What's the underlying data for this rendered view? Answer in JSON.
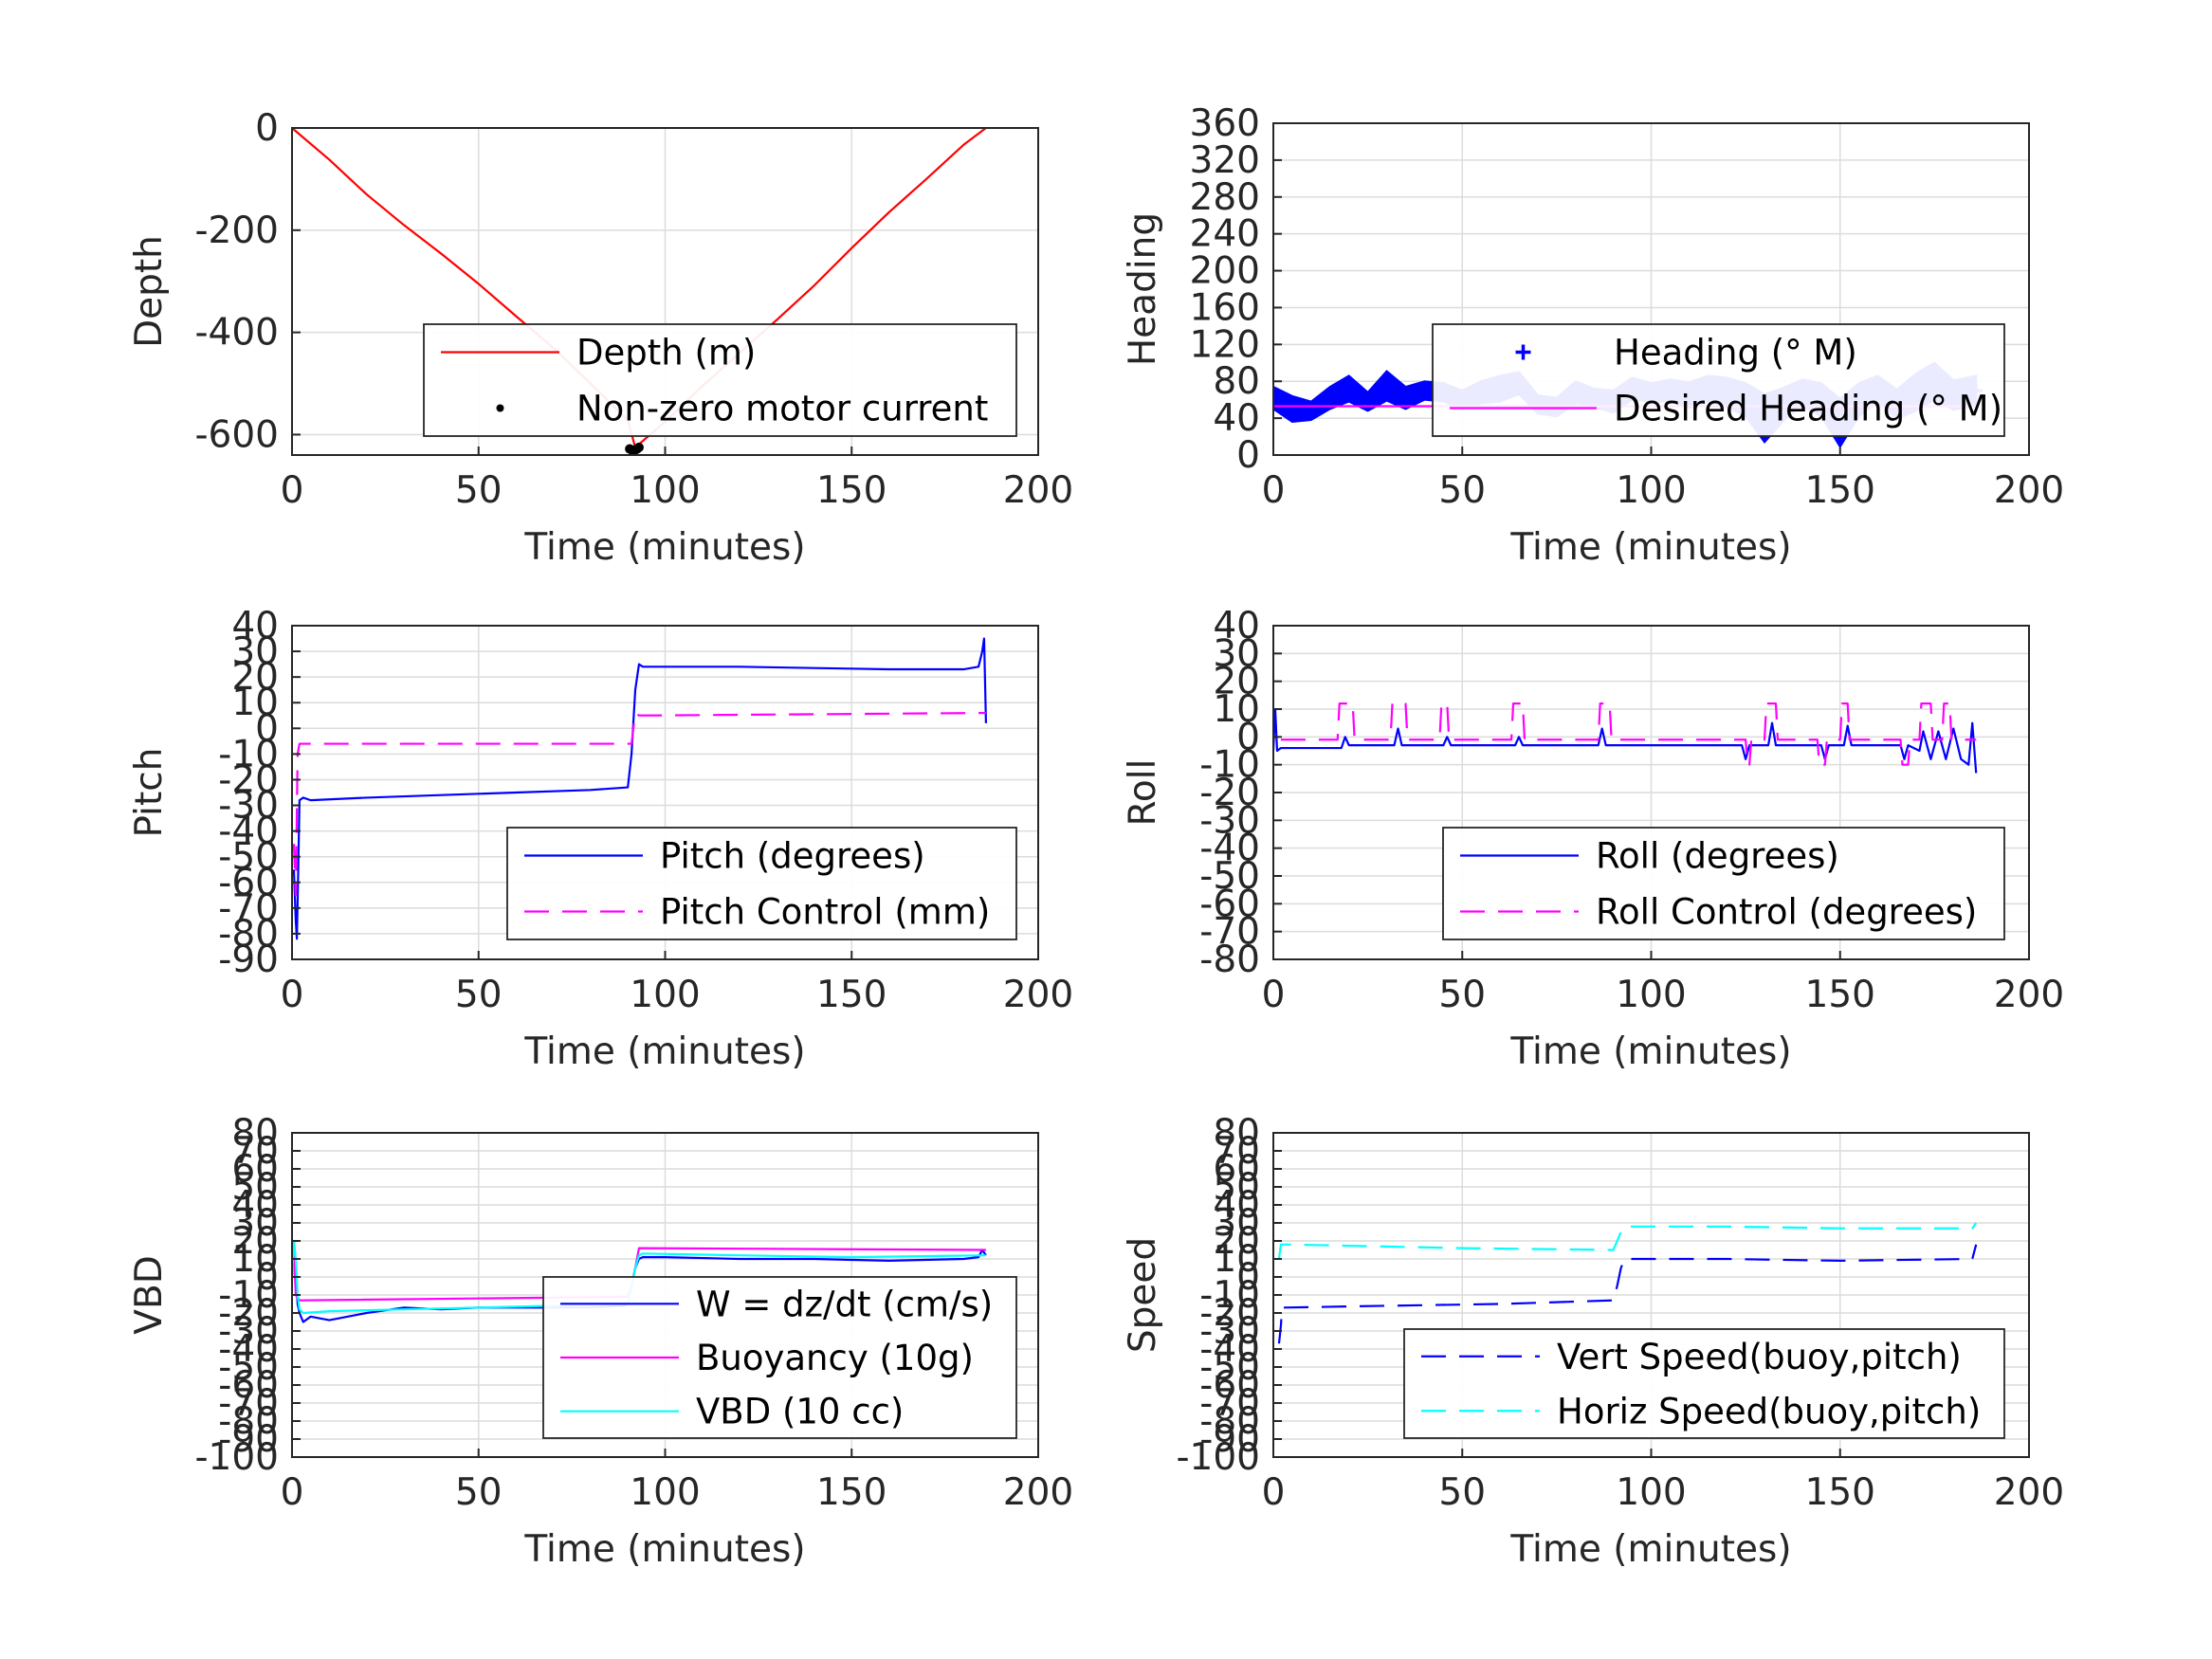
{
  "figure": {
    "background": "#ffffff"
  },
  "chart_data": [
    {
      "type": "line",
      "x_label": "Time (minutes)",
      "y_label": "Depth",
      "xlim": [
        0,
        200
      ],
      "ylim": [
        -640,
        0
      ],
      "x_ticks": [
        0,
        50,
        100,
        150,
        200
      ],
      "y_ticks": [
        0,
        -200,
        -400,
        -600
      ],
      "grid": true,
      "legend_position": "bottom-right",
      "series": [
        {
          "name": "Depth (m)",
          "style": "solid",
          "color": "#ff0000",
          "x": [
            0,
            10,
            20,
            30,
            40,
            50,
            60,
            70,
            80,
            90,
            92,
            100,
            110,
            120,
            130,
            140,
            150,
            160,
            170,
            180,
            186
          ],
          "y": [
            0,
            -62,
            -130,
            -190,
            -246,
            -305,
            -368,
            -430,
            -500,
            -572,
            -625,
            -575,
            -505,
            -440,
            -375,
            -308,
            -235,
            -165,
            -100,
            -33,
            0
          ]
        },
        {
          "name": "Non-zero motor current",
          "style": "dots",
          "color": "#000000",
          "x": [
            90.5,
            91,
            91.5,
            92,
            92.5,
            93
          ],
          "y": [
            -628,
            -630,
            -632,
            -630,
            -628,
            -625
          ]
        }
      ]
    },
    {
      "type": "scatter",
      "x_label": "Time (minutes)",
      "y_label": "Heading",
      "xlim": [
        0,
        200
      ],
      "ylim": [
        0,
        360
      ],
      "x_ticks": [
        0,
        50,
        100,
        150,
        200
      ],
      "y_ticks": [
        0,
        40,
        80,
        120,
        160,
        200,
        240,
        280,
        320,
        360
      ],
      "grid": true,
      "legend_position": "middle-right",
      "series": [
        {
          "name": "Heading (° M)",
          "style": "plus-band",
          "color": "#0000ff",
          "x": [
            0,
            5,
            10,
            15,
            20,
            25,
            30,
            35,
            40,
            45,
            50,
            55,
            60,
            65,
            70,
            75,
            80,
            85,
            90,
            95,
            100,
            105,
            110,
            115,
            120,
            125,
            130,
            135,
            140,
            145,
            150,
            155,
            160,
            165,
            170,
            175,
            180,
            186
          ],
          "y": [
            62,
            50,
            48,
            62,
            72,
            58,
            75,
            62,
            70,
            68,
            60,
            68,
            72,
            78,
            55,
            52,
            68,
            62,
            58,
            72,
            68,
            70,
            65,
            72,
            68,
            60,
            40,
            55,
            68,
            60,
            35,
            60,
            72,
            55,
            68,
            80,
            65,
            70
          ],
          "band": [
            12,
            14,
            10,
            12,
            14,
            10,
            16,
            12,
            10,
            10,
            10,
            12,
            14,
            12,
            10,
            10,
            12,
            10,
            12,
            12,
            10,
            12,
            14,
            14,
            16,
            18,
            26,
            18,
            14,
            18,
            26,
            18,
            14,
            16,
            20,
            20,
            16,
            16
          ]
        },
        {
          "name": "Desired Heading (° M)",
          "style": "solid",
          "color": "#ff00ff",
          "x": [
            0,
            186
          ],
          "y": [
            53,
            53
          ]
        }
      ]
    },
    {
      "type": "line",
      "x_label": "Time (minutes)",
      "y_label": "Pitch",
      "xlim": [
        0,
        200
      ],
      "ylim": [
        -90,
        40
      ],
      "x_ticks": [
        0,
        50,
        100,
        150,
        200
      ],
      "y_ticks": [
        -90,
        -80,
        -70,
        -60,
        -50,
        -40,
        -30,
        -20,
        -10,
        0,
        10,
        20,
        30,
        40
      ],
      "grid": true,
      "legend_position": "bottom-right",
      "series": [
        {
          "name": "Pitch (degrees)",
          "style": "solid",
          "color": "#0000ff",
          "x": [
            0.5,
            1,
            1.3,
            1.6,
            2,
            3,
            5,
            20,
            40,
            60,
            80,
            90,
            91,
            92,
            93,
            94,
            100,
            120,
            140,
            160,
            180,
            184,
            185,
            185.5,
            186
          ],
          "y": [
            -55,
            -75,
            -82,
            -60,
            -28,
            -27,
            -28,
            -27,
            -26,
            -25,
            -24,
            -23,
            -10,
            15,
            25,
            24,
            24,
            24,
            23.5,
            23,
            23,
            24,
            30,
            35,
            2
          ]
        },
        {
          "name": "Pitch Control (mm)",
          "style": "dashed",
          "color": "#ff00ff",
          "x": [
            0.5,
            1,
            1.5,
            2,
            91,
            92,
            93,
            186
          ],
          "y": [
            -45,
            -65,
            -10,
            -6,
            -6,
            6,
            5,
            6
          ]
        }
      ]
    },
    {
      "type": "line",
      "x_label": "Time (minutes)",
      "y_label": "Roll",
      "xlim": [
        0,
        200
      ],
      "ylim": [
        -80,
        40
      ],
      "x_ticks": [
        0,
        50,
        100,
        150,
        200
      ],
      "y_ticks": [
        -80,
        -70,
        -60,
        -50,
        -40,
        -30,
        -20,
        -10,
        0,
        10,
        20,
        30,
        40
      ],
      "grid": true,
      "legend_position": "bottom-right",
      "series": [
        {
          "name": "Roll (degrees)",
          "style": "solid",
          "color": "#0000ff",
          "x": [
            0,
            0.5,
            1,
            2,
            18,
            19,
            20,
            32,
            33,
            34,
            45,
            46,
            47,
            64,
            65,
            66,
            86,
            87,
            88,
            124,
            125,
            126,
            131,
            132,
            133,
            145,
            146,
            147,
            151,
            152,
            153,
            166,
            167,
            168,
            171,
            172,
            174,
            176,
            178,
            180,
            182,
            184,
            185,
            186
          ],
          "y": [
            -5,
            10,
            -5,
            -4,
            -4,
            0,
            -3,
            -3,
            3,
            -3,
            -3,
            0,
            -3,
            -3,
            0,
            -3,
            -3,
            3,
            -3,
            -3,
            -8,
            -3,
            -3,
            5,
            -3,
            -3,
            -8,
            -3,
            -3,
            4,
            -3,
            -3,
            -8,
            -3,
            -5,
            2,
            -8,
            2,
            -8,
            3,
            -8,
            -10,
            5,
            -13
          ]
        },
        {
          "name": "Roll Control (degrees)",
          "style": "dashed",
          "color": "#ff00ff",
          "x": [
            2,
            17,
            17.5,
            21,
            21.5,
            31,
            31.5,
            35,
            35.5,
            44,
            44.5,
            46,
            46.5,
            63,
            63.5,
            66,
            66.5,
            86,
            86.5,
            89,
            89.5,
            125,
            125.5,
            126,
            126.5,
            130,
            130.5,
            133,
            133.5,
            144,
            144.5,
            146,
            146.5,
            150,
            150.5,
            152,
            152.5,
            166,
            166.5,
            168,
            168.5,
            171,
            171.5,
            174,
            174.5,
            177,
            177.5,
            179,
            179.5,
            186
          ],
          "y": [
            -1,
            -1,
            12,
            12,
            -1,
            -1,
            12,
            12,
            -1,
            -1,
            12,
            12,
            -1,
            -1,
            12,
            12,
            -1,
            -1,
            12,
            12,
            -1,
            -1,
            -10,
            -10,
            -1,
            -1,
            12,
            12,
            -1,
            -1,
            -10,
            -10,
            -1,
            -1,
            12,
            12,
            -1,
            -1,
            -10,
            -10,
            -1,
            -1,
            12,
            12,
            -1,
            -1,
            12,
            12,
            -1,
            -1
          ]
        }
      ]
    },
    {
      "type": "line",
      "x_label": "Time (minutes)",
      "y_label": "VBD",
      "xlim": [
        0,
        200
      ],
      "ylim": [
        -100,
        80
      ],
      "x_ticks": [
        0,
        50,
        100,
        150,
        200
      ],
      "y_ticks": [
        -100,
        -90,
        -80,
        -70,
        -60,
        -50,
        -40,
        -30,
        -20,
        -10,
        0,
        10,
        20,
        30,
        40,
        50,
        60,
        70,
        80
      ],
      "grid": true,
      "legend_position": "bottom-right",
      "series": [
        {
          "name": "W = dz/dt (cm/s)",
          "style": "solid",
          "color": "#0000ff",
          "x": [
            0,
            0.5,
            1,
            1.5,
            2,
            3,
            5,
            10,
            20,
            30,
            40,
            50,
            60,
            70,
            80,
            89,
            90,
            91,
            92,
            93,
            94,
            100,
            120,
            140,
            160,
            180,
            184,
            185,
            186
          ],
          "y": [
            0,
            20,
            5,
            -15,
            -20,
            -25,
            -22,
            -24,
            -20,
            -17,
            -18,
            -17,
            -17,
            -17,
            -17,
            -16,
            -15,
            -5,
            5,
            10,
            11,
            11,
            10,
            10,
            9,
            10,
            11,
            15,
            12
          ]
        },
        {
          "name": "Buoyancy (10g)",
          "style": "solid",
          "color": "#ff00ff",
          "x": [
            0.5,
            1,
            2,
            90,
            91,
            92,
            93,
            186
          ],
          "y": [
            15,
            -10,
            -13,
            -11,
            -5,
            5,
            16,
            15
          ]
        },
        {
          "name": "VBD (10 cc)",
          "style": "solid",
          "color": "#00ffff",
          "x": [
            0,
            0.5,
            1,
            1.5,
            2,
            3,
            10,
            30,
            50,
            70,
            90,
            91,
            92,
            93,
            94,
            120,
            150,
            186
          ],
          "y": [
            0,
            20,
            10,
            -10,
            -18,
            -20,
            -19,
            -18,
            -17,
            -16,
            -15,
            -5,
            5,
            12,
            13,
            12,
            11,
            12
          ]
        }
      ]
    },
    {
      "type": "line",
      "x_label": "Time (minutes)",
      "y_label": "Speed",
      "xlim": [
        0,
        200
      ],
      "ylim": [
        -100,
        80
      ],
      "x_ticks": [
        0,
        50,
        100,
        150,
        200
      ],
      "y_ticks": [
        -100,
        -90,
        -80,
        -70,
        -60,
        -50,
        -40,
        -30,
        -20,
        -10,
        0,
        10,
        20,
        30,
        40,
        50,
        60,
        70,
        80
      ],
      "grid": true,
      "legend_position": "bottom-right",
      "series": [
        {
          "name": "Vert Speed(buoy,pitch)",
          "style": "dashed",
          "color": "#0000ff",
          "x": [
            1.5,
            2,
            2.3,
            3,
            30,
            60,
            90,
            91,
            92,
            93,
            120,
            150,
            185,
            186
          ],
          "y": [
            -37,
            -27,
            -17,
            -17,
            -16,
            -15,
            -13,
            -5,
            5,
            10,
            10,
            9,
            10,
            18
          ]
        },
        {
          "name": "Horiz Speed(buoy,pitch)",
          "style": "dashed",
          "color": "#00ffff",
          "x": [
            1.5,
            2,
            2.5,
            5,
            50,
            90,
            91,
            92,
            93,
            120,
            150,
            185,
            186
          ],
          "y": [
            10,
            18,
            18,
            18,
            16,
            15,
            20,
            25,
            28,
            28,
            27,
            27,
            30
          ]
        }
      ]
    }
  ]
}
